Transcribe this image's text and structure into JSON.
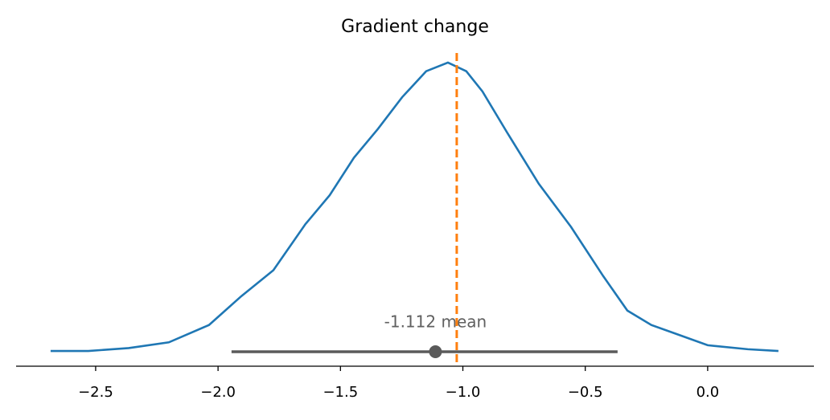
{
  "chart_data": {
    "type": "density",
    "title": "Gradient change",
    "x": [
      -2.684,
      -2.53,
      -2.365,
      -2.201,
      -2.037,
      -1.905,
      -1.774,
      -1.643,
      -1.544,
      -1.445,
      -1.347,
      -1.248,
      -1.15,
      -1.061,
      -0.986,
      -0.92,
      -0.821,
      -0.69,
      -0.558,
      -0.427,
      -0.328,
      -0.23,
      -0.131,
      0.0,
      0.164,
      0.289
    ],
    "series": [
      {
        "color": "#1f77b4",
        "values": [
          0.0,
          0.0,
          0.01,
          0.03,
          0.09,
          0.19,
          0.28,
          0.44,
          0.54,
          0.67,
          0.77,
          0.88,
          0.97,
          1.0,
          0.97,
          0.9,
          0.76,
          0.58,
          0.43,
          0.26,
          0.14,
          0.09,
          0.06,
          0.02,
          0.006,
          0.0
        ]
      }
    ],
    "reference_line": {
      "value": -1.025,
      "color": "#ff7f0e"
    },
    "hdi": {
      "low": -1.945,
      "high": -0.368,
      "color": "#5a5a5a"
    },
    "mean": -1.112,
    "mean_label": "-1.112 mean",
    "xlim": [
      -2.825,
      0.434
    ],
    "ylim": [
      -0.05,
      1.05
    ],
    "xticks": [
      {
        "value": -2.5,
        "label": "−2.5"
      },
      {
        "value": -2.0,
        "label": "−2.0"
      },
      {
        "value": -1.5,
        "label": "−1.5"
      },
      {
        "value": -1.0,
        "label": "−1.0"
      },
      {
        "value": -0.5,
        "label": "−0.5"
      },
      {
        "value": 0.0,
        "label": "0.0"
      }
    ]
  }
}
